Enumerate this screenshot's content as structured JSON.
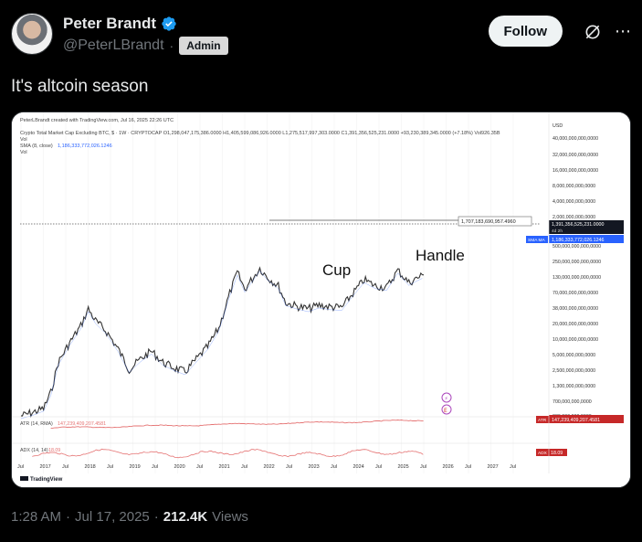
{
  "author": {
    "display_name": "Peter Brandt",
    "handle": "@PeterLBrandt",
    "separator": "·",
    "badge": "Admin"
  },
  "actions": {
    "follow_label": "Follow",
    "more_icon": "more-icon",
    "grok_icon": "grok-icon"
  },
  "tweet": {
    "text": "It's altcoin season"
  },
  "meta": {
    "time": "1:28 AM",
    "separator1": "·",
    "date": "Jul 17, 2025",
    "separator2": "·",
    "views": "212.4K",
    "views_label": "Views"
  },
  "colors": {
    "accent_verified": "#1d9bf0",
    "price_line": "#333333",
    "sma_tag": "#2962ff",
    "atr_line": "#e57373",
    "price_tag": "#131722",
    "atr_tag": "#c62828"
  },
  "chart_data": {
    "type": "line",
    "header_line1": "PeterLBrandt created with TradingView.com, Jul 16, 2025 22:26 UTC",
    "header_line2": "Crypto Total Market Cap Excluding BTC, $ · 1W · CRYPTOCAP  O1,298,047,175,386.0000  H1,405,599,086,926.0000  L1,275,517,997,303.0000  C1,391,356,525,231.0000  +93,230,389,345.0000 (+7.18%)  Vol926.35B",
    "header_line3": "Vol",
    "header_line4_label": "SMA (8, close)",
    "header_line4_value": "1,186,333,772,026.1246",
    "header_line5": "Vol",
    "y_scale": "log",
    "y_ticks": [
      "USD",
      "40,000,000,000,0000",
      "32,000,000,000,0000",
      "16,000,000,000,0000",
      "8,000,000,000,0000",
      "4,000,000,000,0000",
      "2,000,000,000,0000",
      "500,000,000,000,0000",
      "250,000,000,000,0000",
      "130,000,000,000,0000",
      "70,000,000,000,0000",
      "38,000,000,000,0000",
      "20,000,000,000,0000",
      "10,000,000,000,0000",
      "5,000,000,000,0000",
      "2,500,000,000,0000",
      "1,300,000,000,0000",
      "700,000,000,0000",
      "380,000,000,0000"
    ],
    "x_ticks": [
      "Jul",
      "2017",
      "Jul",
      "2018",
      "Jul",
      "2019",
      "Jul",
      "2020",
      "Jul",
      "2021",
      "Jul",
      "2022",
      "Jul",
      "2023",
      "Jul",
      "2024",
      "Jul",
      "2025",
      "Jul",
      "2026",
      "Jul",
      "2027",
      "Jul"
    ],
    "resistance_label": "1,707,183,690,957.4960",
    "price_tag": "1,391,356,525,231.0000",
    "price_tag_sub": "4d 2h",
    "sma_tag_label": "SMA MA",
    "sma_tag_value": "1,186,333,772,026.1246",
    "annotations": [
      "Cup",
      "Handle"
    ],
    "atr_label": "ATR (14, RMA)",
    "atr_value": "147,239,409,207.4581",
    "atr_tag_label": "ATR",
    "atr_tag_value": "147,239,409,207.4581",
    "adx_label": "ADX (14, 14)",
    "adx_value": "18.09",
    "adx_tag_label": "ADX",
    "adx_tag_value": "18.09",
    "logo": "TradingView",
    "series": [
      {
        "values": [
          {
            "x": "2016-07",
            "y": 20
          },
          {
            "x": "2016-10",
            "y": 22
          },
          {
            "x": "2017-01",
            "y": 25
          },
          {
            "x": "2017-03",
            "y": 40
          },
          {
            "x": "2017-05",
            "y": 100
          },
          {
            "x": "2017-08",
            "y": 180
          },
          {
            "x": "2017-11",
            "y": 300
          },
          {
            "x": "2018-01",
            "y": 500
          },
          {
            "x": "2018-03",
            "y": 350
          },
          {
            "x": "2018-06",
            "y": 250
          },
          {
            "x": "2018-09",
            "y": 150
          },
          {
            "x": "2018-12",
            "y": 80
          },
          {
            "x": "2019-03",
            "y": 110
          },
          {
            "x": "2019-06",
            "y": 140
          },
          {
            "x": "2019-09",
            "y": 100
          },
          {
            "x": "2019-12",
            "y": 85
          },
          {
            "x": "2020-03",
            "y": 75
          },
          {
            "x": "2020-06",
            "y": 110
          },
          {
            "x": "2020-09",
            "y": 160
          },
          {
            "x": "2020-12",
            "y": 280
          },
          {
            "x": "2021-03",
            "y": 800
          },
          {
            "x": "2021-05",
            "y": 1500
          },
          {
            "x": "2021-07",
            "y": 900
          },
          {
            "x": "2021-11",
            "y": 1700
          },
          {
            "x": "2022-01",
            "y": 1300
          },
          {
            "x": "2022-04",
            "y": 1000
          },
          {
            "x": "2022-06",
            "y": 600
          },
          {
            "x": "2022-09",
            "y": 540
          },
          {
            "x": "2022-12",
            "y": 500
          },
          {
            "x": "2023-03",
            "y": 560
          },
          {
            "x": "2023-06",
            "y": 530
          },
          {
            "x": "2023-09",
            "y": 520
          },
          {
            "x": "2023-12",
            "y": 800
          },
          {
            "x": "2024-03",
            "y": 1200
          },
          {
            "x": "2024-06",
            "y": 1000
          },
          {
            "x": "2024-09",
            "y": 950
          },
          {
            "x": "2024-12",
            "y": 1600
          },
          {
            "x": "2025-03",
            "y": 1100
          },
          {
            "x": "2025-05",
            "y": 1250
          },
          {
            "x": "2025-07",
            "y": 1391
          }
        ]
      }
    ]
  }
}
